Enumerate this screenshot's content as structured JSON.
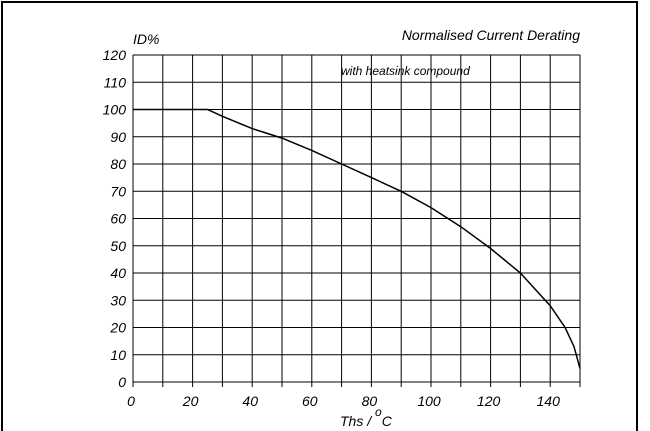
{
  "chart_data": {
    "type": "line",
    "title": "Normalised Current Derating",
    "annotation": "with heatsink compound",
    "ylabel": "ID%",
    "xlabel_main": "Ths / ",
    "xlabel_degree": "o",
    "xlabel_unit": "C",
    "xlim": [
      0,
      150
    ],
    "ylim": [
      0,
      120
    ],
    "x_ticks": [
      "0",
      "20",
      "40",
      "60",
      "80",
      "100",
      "120",
      "140"
    ],
    "y_ticks": [
      "0",
      "10",
      "20",
      "30",
      "40",
      "50",
      "60",
      "70",
      "80",
      "90",
      "100",
      "110",
      "120"
    ],
    "grid": true,
    "series": [
      {
        "x": [
          0,
          25,
          30,
          40,
          50,
          60,
          70,
          80,
          90,
          100,
          110,
          120,
          130,
          140,
          145,
          148,
          150
        ],
        "y": [
          100,
          100,
          97.5,
          93,
          89.5,
          85,
          80,
          75,
          70,
          64,
          57,
          49,
          40,
          28,
          20,
          13,
          5
        ]
      }
    ]
  }
}
